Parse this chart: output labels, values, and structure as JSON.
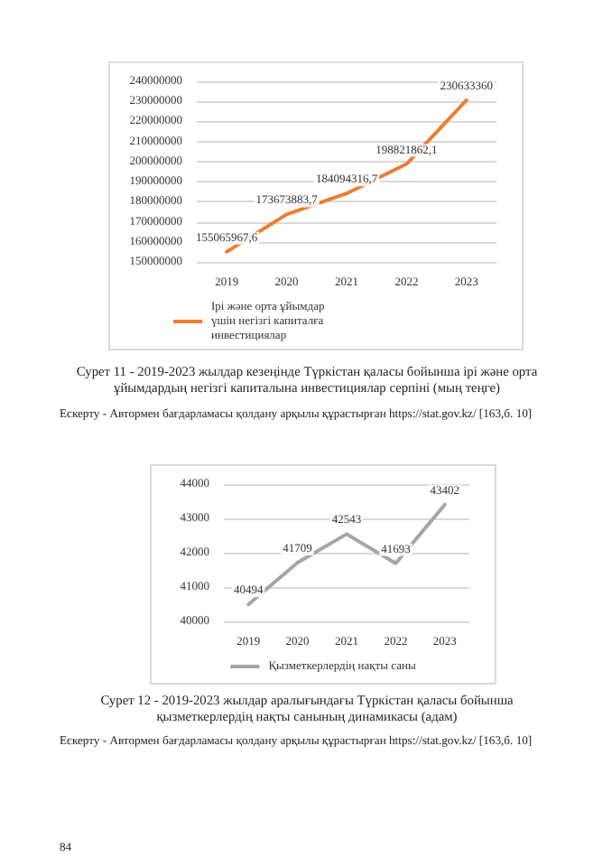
{
  "chart_data": [
    {
      "type": "line",
      "categories": [
        "2019",
        "2020",
        "2021",
        "2022",
        "2023"
      ],
      "series": [
        {
          "name": "Ірі және орта ұйымдар үшін негізгі капиталға инвестициялар",
          "color": "#ed7d31",
          "values": [
            155065967.6,
            173673883.7,
            184094316.7,
            198821862.1,
            230633360
          ],
          "value_labels": [
            "155065967,6",
            "173673883,7",
            "184094316,7",
            "198821862,1",
            "230633360"
          ]
        }
      ],
      "ylim": [
        150000000,
        240000000
      ],
      "yticks": [
        150000000,
        160000000,
        170000000,
        180000000,
        190000000,
        200000000,
        210000000,
        220000000,
        230000000,
        240000000
      ],
      "grid": "y",
      "legend": "bottom",
      "marker": "none",
      "line_style": "solid",
      "annotations": [
        "Сурет  11 - 2019-2023 жылдар кезеңінде Түркістан қаласы бойынша ірі және орта ұйымдардың негізгі капиталына инвестициялар серпіні (мың теңге)",
        "Ескерту - Автормен бағдарламасы қолдану арқылы құрастырған https://stat.gov.kz/ [163,б. 10]"
      ]
    },
    {
      "type": "line",
      "categories": [
        "2019",
        "2020",
        "2021",
        "2022",
        "2023"
      ],
      "series": [
        {
          "name": "Қызметкерлердің нақты саны",
          "color": "#a5a5a5",
          "values": [
            40494,
            41709,
            42543,
            41693,
            43402
          ],
          "value_labels": [
            "40494",
            "41709",
            "42543",
            "41693",
            "43402"
          ]
        }
      ],
      "ylim": [
        40000,
        44000
      ],
      "yticks": [
        40000,
        41000,
        42000,
        43000,
        44000
      ],
      "grid": "y",
      "legend": "bottom",
      "marker": "none",
      "line_style": "solid",
      "annotations": [
        "Сурет  12 - 2019-2023 жылдар аралығындағы Түркістан қаласы бойынша қызметкерлердің нақты санының динамикасы (адам)",
        "Ескерту - Автормен бағдарламасы қолдану арқылы құрастырған https://stat.gov.kz/ [163,б. 10]",
        "84"
      ]
    }
  ]
}
